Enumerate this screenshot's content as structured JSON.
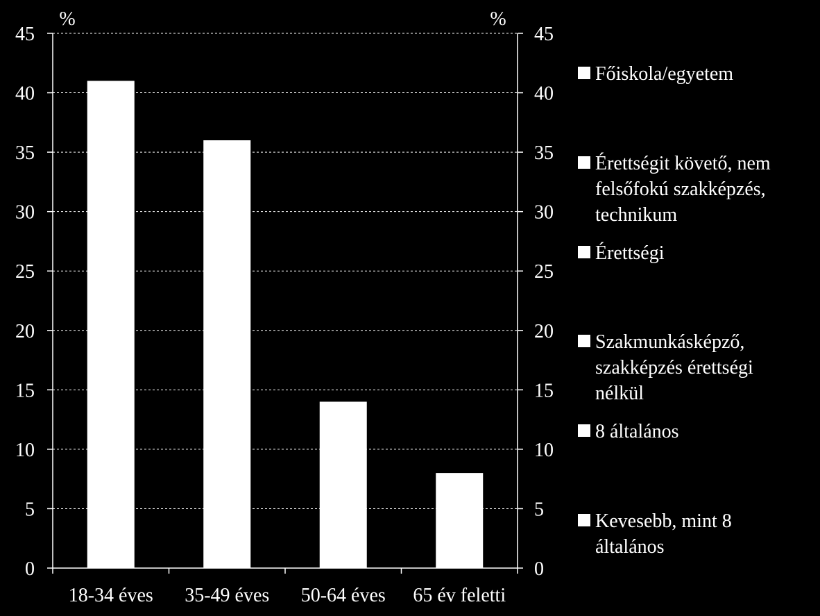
{
  "chart_data": {
    "type": "bar",
    "categories": [
      "18-34 éves",
      "35-49 éves",
      "50-64 éves",
      "65 év feletti"
    ],
    "series": [
      {
        "name": "Főiskola/egyetem",
        "values": [
          41,
          36,
          14,
          8
        ]
      }
    ],
    "ylim": [
      0,
      45
    ],
    "yticks": [
      0,
      5,
      10,
      15,
      20,
      25,
      30,
      35,
      40,
      45
    ],
    "ylabel_left": "%",
    "ylabel_right": "%",
    "grid": true,
    "legend_position": "right",
    "legend": [
      {
        "lines": [
          "Főiskola/egyetem"
        ]
      },
      {
        "lines": [
          "Érettségit követő, nem",
          "felsőfokú szakképzés,",
          "technikum"
        ]
      },
      {
        "lines": [
          "Érettségi"
        ]
      },
      {
        "lines": [
          "Szakmunkásképző,",
          "szakképzés érettségi",
          "nélkül"
        ]
      },
      {
        "lines": [
          "8 általános"
        ]
      },
      {
        "lines": [
          "Kevesebb, mint 8",
          "általános"
        ]
      }
    ],
    "colors": {
      "background": "#000000",
      "bar": "#ffffff",
      "axis": "#ffffff",
      "grid": "#ffffff",
      "text": "#ffffff"
    }
  }
}
